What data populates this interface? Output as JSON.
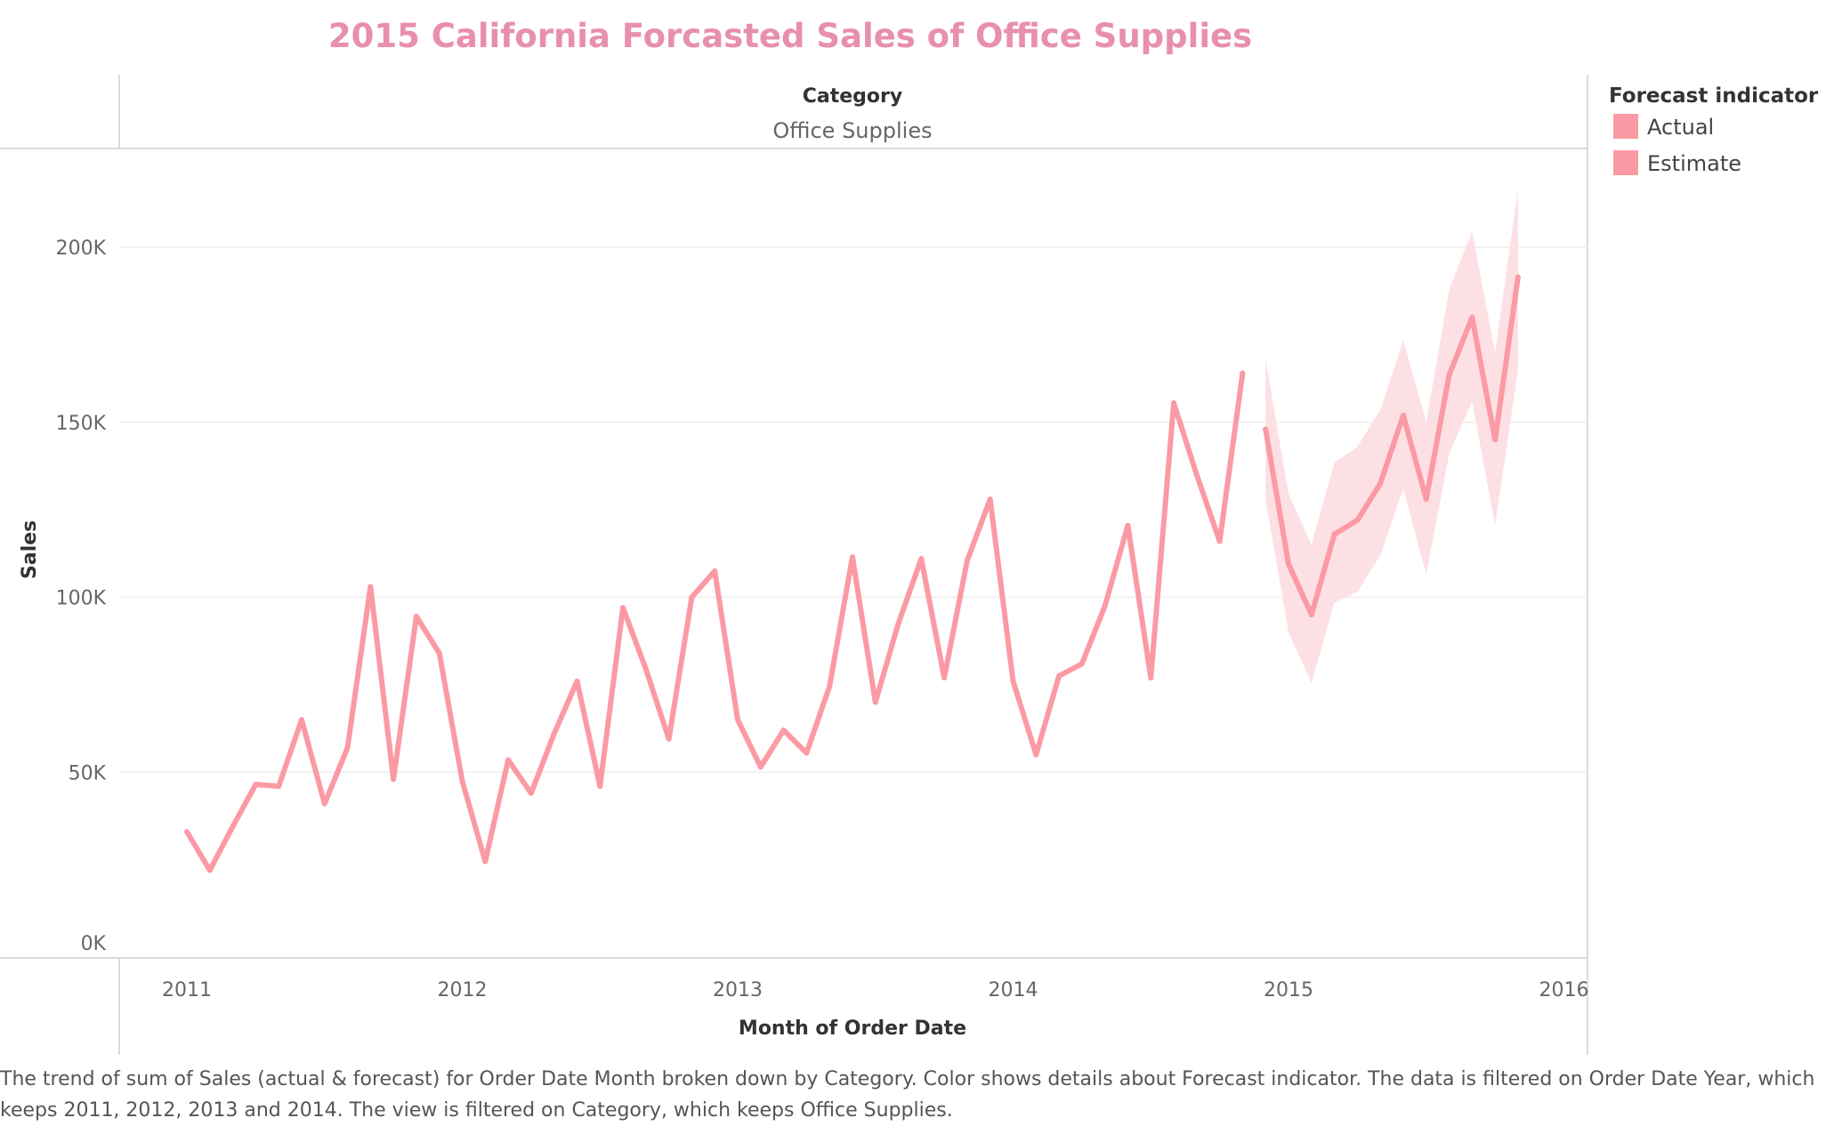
{
  "title": "2015 California Forcasted Sales of Office Supplies",
  "header": {
    "label": "Category",
    "value": "Office Supplies"
  },
  "caption": "The trend of sum of Sales (actual & forecast)  for Order Date Month broken down by Category.  Color shows details about Forecast indicator. The data is filtered on Order Date Year, which keeps 2011, 2012, 2013 and 2014. The view is filtered on Category, which keeps Office Supplies.",
  "colors": {
    "title": "#e88fae",
    "line": "#fb9aa4",
    "band": "#fde0e4",
    "grid": "#eeeeee",
    "axis": "#cfcfcf"
  },
  "chart_data": {
    "type": "line",
    "title": "2015 California Forcasted Sales of Office Supplies",
    "xlabel": "Month of Order Date",
    "ylabel": "Sales",
    "xlim": [
      "2011",
      "2016"
    ],
    "x_ticks": [
      "2011",
      "2012",
      "2013",
      "2014",
      "2015",
      "2016"
    ],
    "ylim": [
      0,
      225000
    ],
    "y_ticks": [
      0,
      50000,
      100000,
      150000,
      200000
    ],
    "y_tick_labels": [
      "0K",
      "50K",
      "100K",
      "150K",
      "200K"
    ],
    "grid": true,
    "legend": {
      "title": "Forecast indicator",
      "placement": "top-right",
      "entries": [
        {
          "label": "Actual",
          "color": "#fb9aa4"
        },
        {
          "label": "Estimate",
          "color": "#fb9aa4"
        }
      ]
    },
    "series": [
      {
        "name": "Actual",
        "x": [
          "2011-01",
          "2011-02",
          "2011-03",
          "2011-04",
          "2011-05",
          "2011-06",
          "2011-07",
          "2011-08",
          "2011-09",
          "2011-10",
          "2011-11",
          "2011-12",
          "2012-01",
          "2012-02",
          "2012-03",
          "2012-04",
          "2012-05",
          "2012-06",
          "2012-07",
          "2012-08",
          "2012-09",
          "2012-10",
          "2012-11",
          "2012-12",
          "2013-01",
          "2013-02",
          "2013-03",
          "2013-04",
          "2013-05",
          "2013-06",
          "2013-07",
          "2013-08",
          "2013-09",
          "2013-10",
          "2013-11",
          "2013-12",
          "2014-01",
          "2014-02",
          "2014-03",
          "2014-04",
          "2014-05",
          "2014-06",
          "2014-07",
          "2014-08",
          "2014-09",
          "2014-10",
          "2014-11"
        ],
        "values": [
          33000,
          22000,
          34500,
          46500,
          46000,
          65000,
          41000,
          57000,
          103000,
          48000,
          94500,
          84000,
          47500,
          24500,
          53500,
          44000,
          61000,
          76000,
          46000,
          97000,
          79500,
          59500,
          100000,
          107500,
          65000,
          51500,
          62000,
          55500,
          74500,
          111500,
          70000,
          92500,
          111000,
          77000,
          110500,
          128000,
          76000,
          55000,
          77500,
          81000,
          97500,
          120500,
          77000,
          155500,
          135000,
          116000,
          164000
        ]
      },
      {
        "name": "Estimate",
        "x": [
          "2014-12",
          "2015-01",
          "2015-02",
          "2015-03",
          "2015-04",
          "2015-05",
          "2015-06",
          "2015-07",
          "2015-08",
          "2015-09",
          "2015-10",
          "2015-11"
        ],
        "values": [
          148000,
          109500,
          95000,
          118000,
          122000,
          132500,
          152000,
          128000,
          163500,
          180000,
          145000,
          191500
        ],
        "upper": [
          168000,
          129500,
          115000,
          138500,
          143000,
          153500,
          173500,
          150000,
          188000,
          204500,
          170000,
          216500
        ],
        "lower": [
          128000,
          90000,
          75500,
          98500,
          101500,
          112000,
          131000,
          106500,
          141000,
          156000,
          120500,
          165000
        ]
      }
    ]
  }
}
